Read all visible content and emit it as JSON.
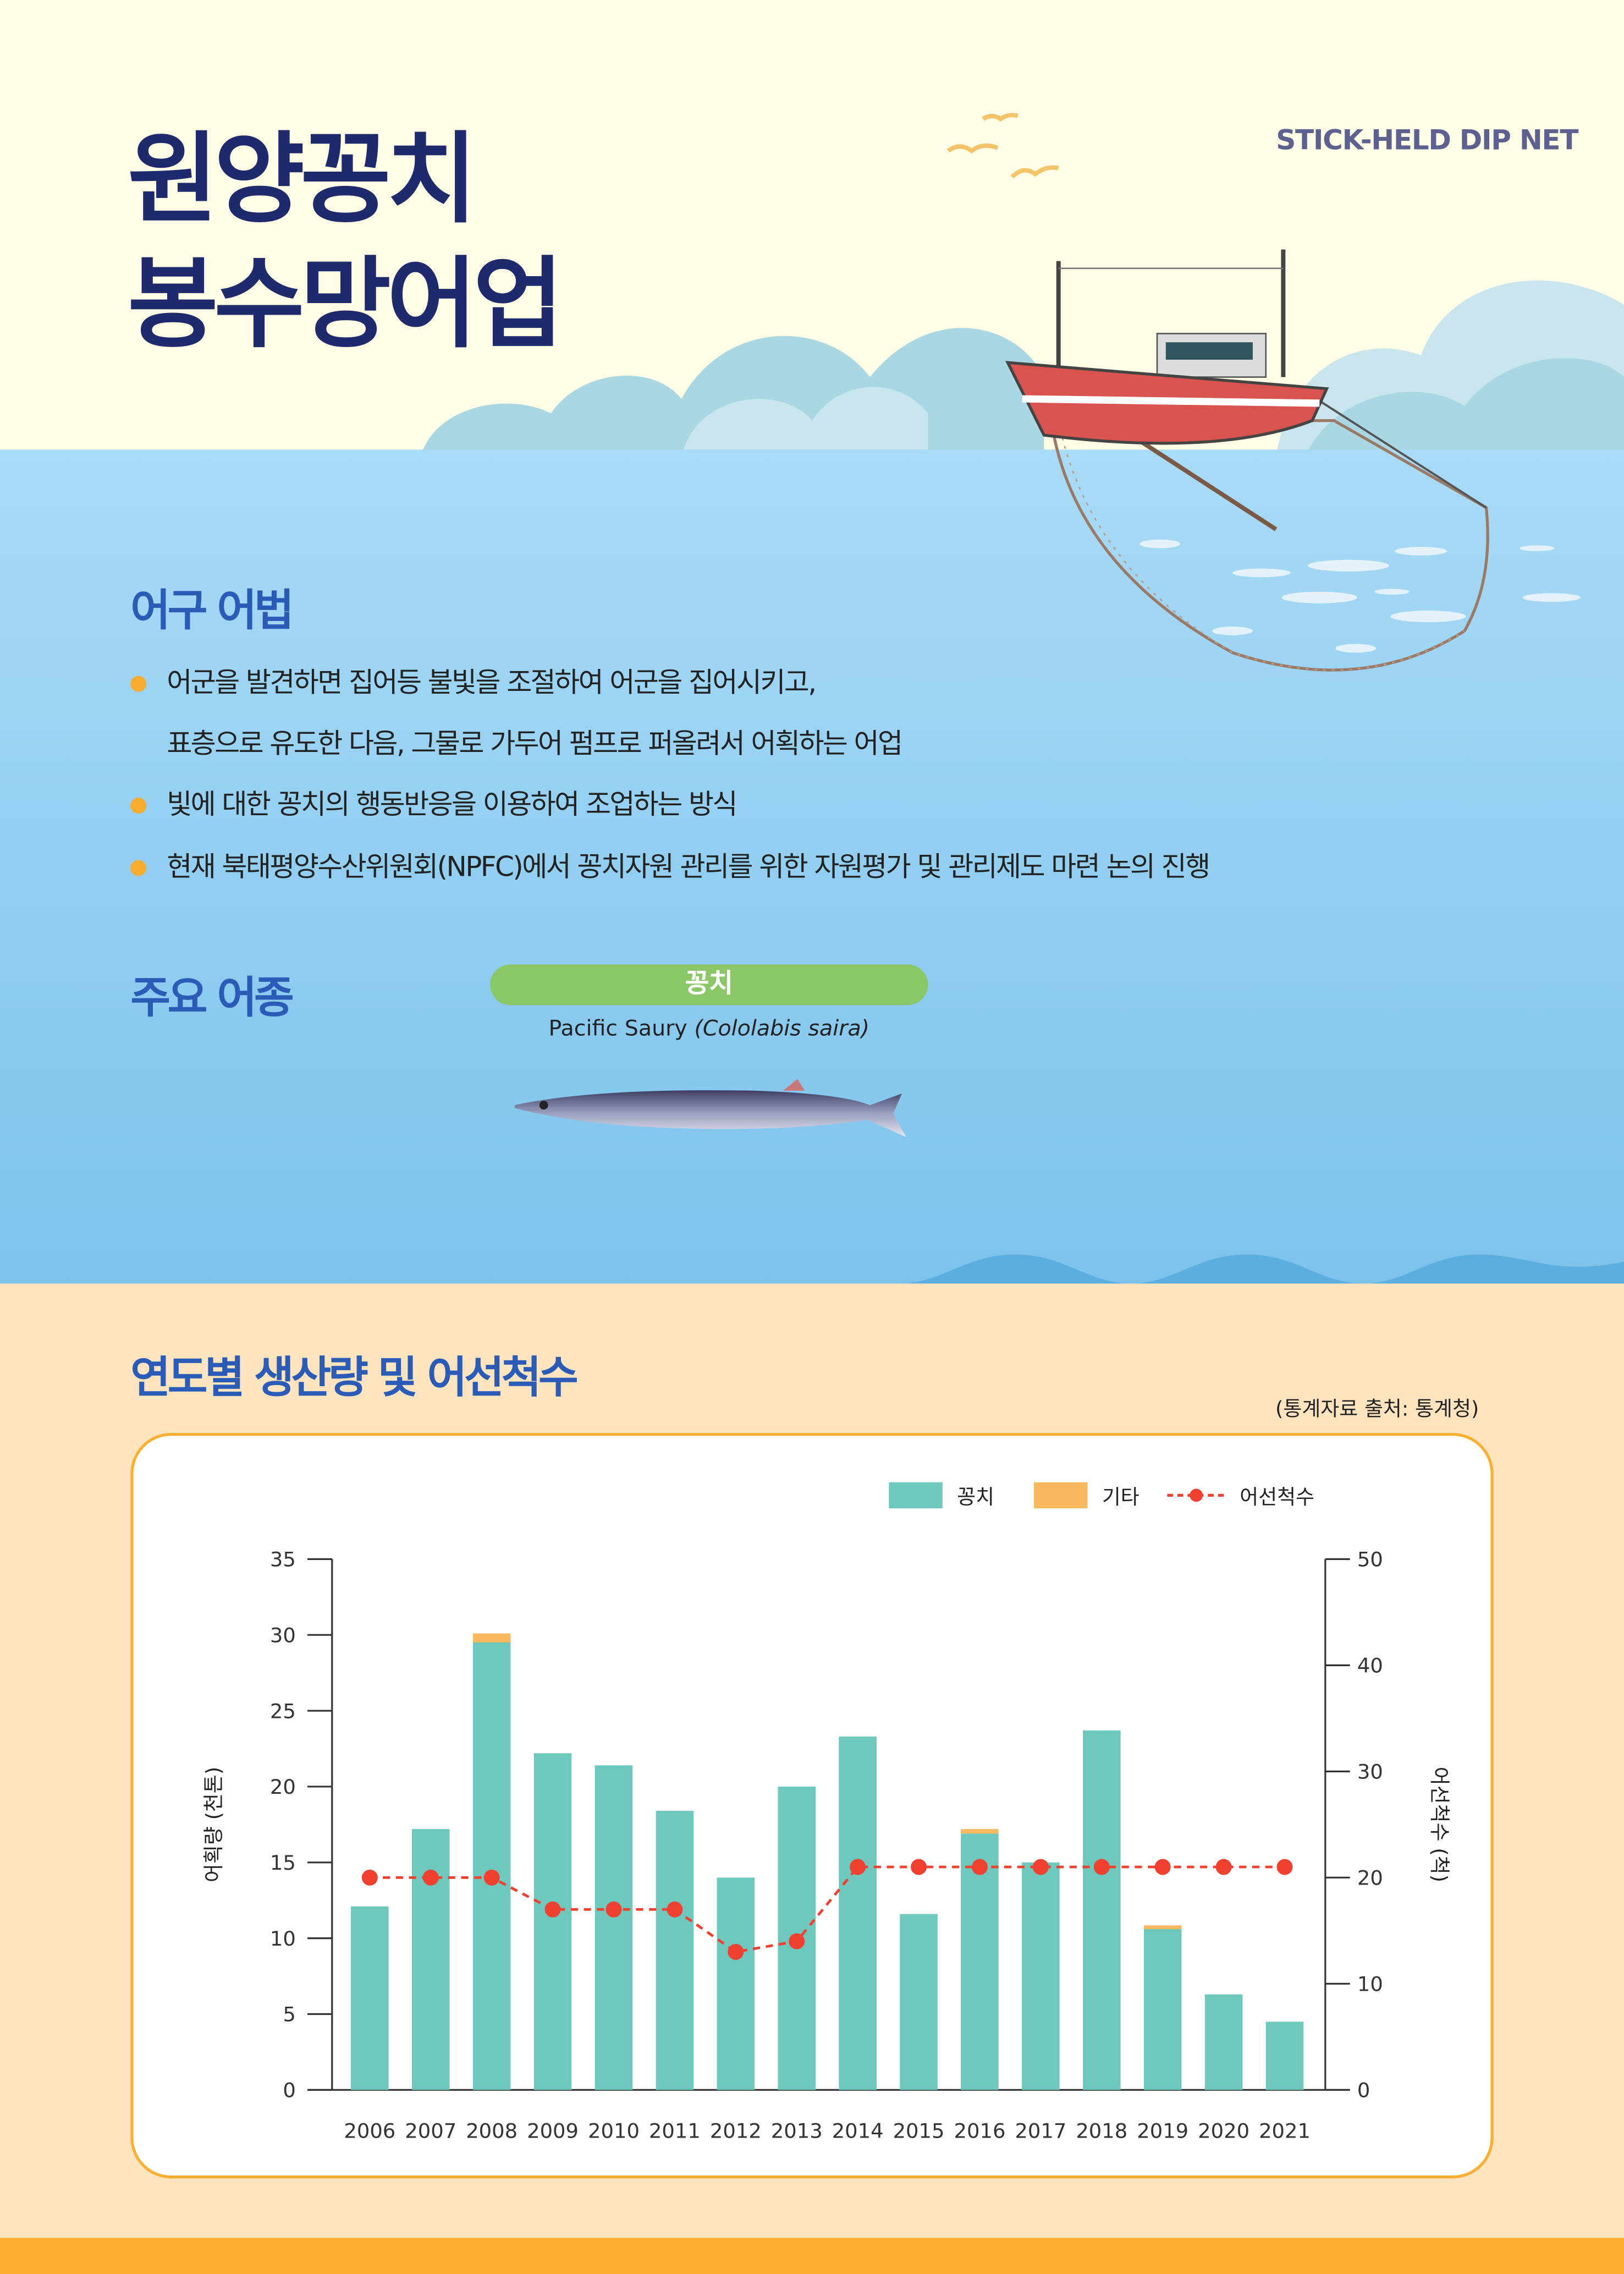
{
  "header": {
    "title_line1": "원양꽁치",
    "title_line2": "봉수망어업",
    "english_title": "STICK-HELD DIP NET"
  },
  "method_section": {
    "heading": "어구 어법",
    "bullets": [
      "어군을 발견하면 집어등 불빛을 조절하여 어군을 집어시키고,",
      "표층으로 유도한 다음, 그물로 가두어 펌프로 퍼올려서 어획하는 어업",
      "빛에 대한 꽁치의 행동반응을 이용하여 조업하는 방식",
      "현재 북태평양수산위원회(NPFC)에서 꽁치자원 관리를 위한 자원평가 및 관리제도 마련 논의 진행"
    ]
  },
  "species_section": {
    "heading": "주요 어종",
    "species_name": "꽁치",
    "english_name": "Pacific Saury",
    "scientific_name": "(Cololabis saira)"
  },
  "chart_section": {
    "heading": "연도별 생산량 및 어선척수",
    "source": "(통계자료 출처: 통계청)"
  },
  "colors": {
    "saury": "#6ec8bd",
    "other": "#fbb95f",
    "vessels": "#ef4030",
    "accent": "#fbb034",
    "navy": "#1e2a6c",
    "blue": "#2a5cb7"
  },
  "chart_data": {
    "type": "bar",
    "stacked": true,
    "categories": [
      "2006",
      "2007",
      "2008",
      "2009",
      "2010",
      "2011",
      "2012",
      "2013",
      "2014",
      "2015",
      "2016",
      "2017",
      "2018",
      "2019",
      "2020",
      "2021"
    ],
    "series": [
      {
        "name": "꽁치",
        "type": "bar",
        "axis": "left",
        "values": [
          12.1,
          17.2,
          29.5,
          22.2,
          21.4,
          18.4,
          14.0,
          20.0,
          23.3,
          11.6,
          16.9,
          15.0,
          23.7,
          10.6,
          6.3,
          4.5
        ]
      },
      {
        "name": "기타",
        "type": "bar",
        "axis": "left",
        "values": [
          0,
          0,
          0.6,
          0,
          0,
          0,
          0,
          0,
          0,
          0,
          0.3,
          0,
          0,
          0.25,
          0,
          0
        ]
      },
      {
        "name": "어선척수",
        "type": "line",
        "axis": "right",
        "style": "dashed",
        "values": [
          20,
          20,
          20,
          17,
          17,
          17,
          13,
          14,
          21,
          21,
          21,
          21,
          21,
          21,
          21,
          21
        ]
      }
    ],
    "ylabel": "어획량 (천톤)",
    "y2label": "어선척수 (척)",
    "ylim": [
      0,
      35
    ],
    "y2lim": [
      0,
      50
    ],
    "yticks": [
      0,
      5,
      10,
      15,
      20,
      25,
      30,
      35
    ],
    "y2ticks": [
      0,
      10,
      20,
      30,
      40,
      50
    ],
    "grid": false,
    "legend": "top-right"
  }
}
